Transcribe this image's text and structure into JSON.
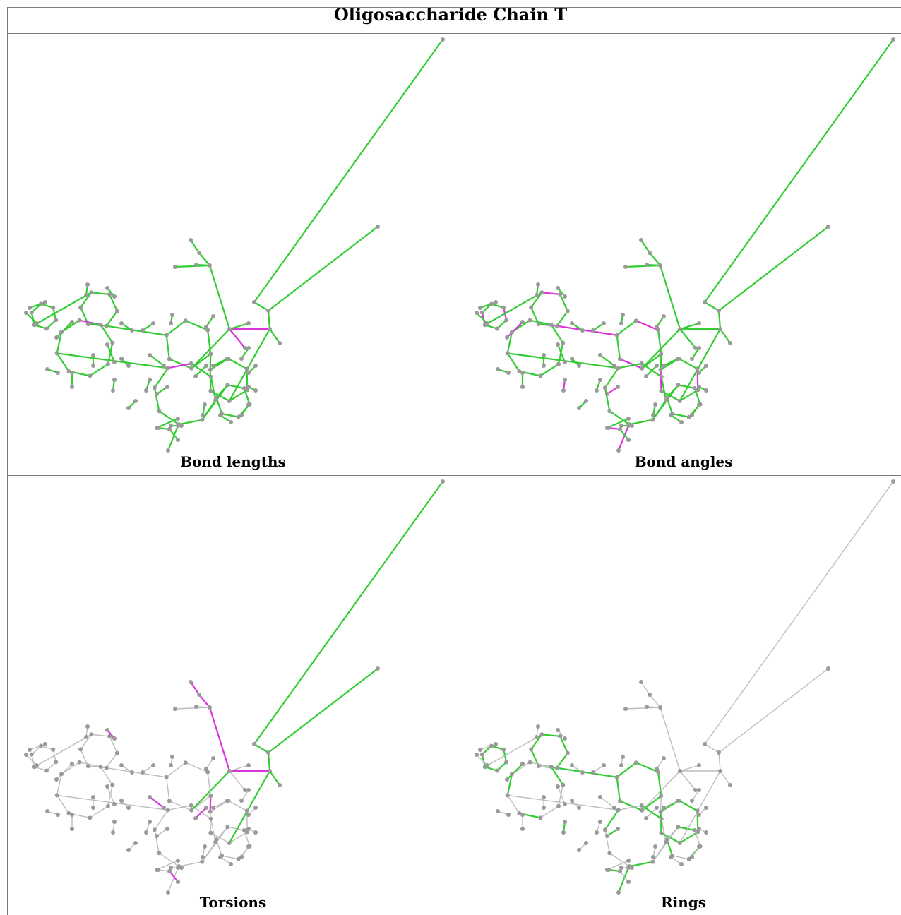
{
  "title": "Oligosaccharide Chain T",
  "panels": [
    {
      "id": "bond-lengths",
      "label": "Bond lengths",
      "mode": "lengths"
    },
    {
      "id": "bond-angles",
      "label": "Bond angles",
      "mode": "angles"
    },
    {
      "id": "torsions",
      "label": "Torsions",
      "mode": "torsions"
    },
    {
      "id": "rings",
      "label": "Rings",
      "mode": "rings"
    }
  ],
  "colors": {
    "atom": "#9a9a9a",
    "ok": "#33cc33",
    "outlier": "#dd33dd",
    "neutral": "#bdbdbd",
    "grid": "#7a7a7a"
  }
}
